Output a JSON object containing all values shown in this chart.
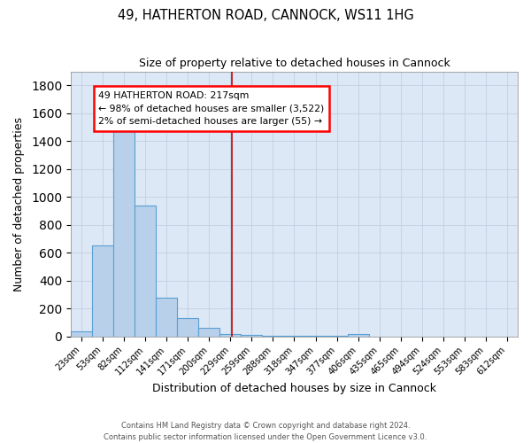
{
  "title": "49, HATHERTON ROAD, CANNOCK, WS11 1HG",
  "subtitle": "Size of property relative to detached houses in Cannock",
  "xlabel": "Distribution of detached houses by size in Cannock",
  "ylabel": "Number of detached properties",
  "footer_line1": "Contains HM Land Registry data © Crown copyright and database right 2024.",
  "footer_line2": "Contains public sector information licensed under the Open Government Licence v3.0.",
  "categories": [
    "23sqm",
    "53sqm",
    "82sqm",
    "112sqm",
    "141sqm",
    "171sqm",
    "200sqm",
    "229sqm",
    "259sqm",
    "288sqm",
    "318sqm",
    "347sqm",
    "377sqm",
    "406sqm",
    "435sqm",
    "465sqm",
    "494sqm",
    "524sqm",
    "553sqm",
    "583sqm",
    "612sqm"
  ],
  "values": [
    35,
    650,
    1470,
    940,
    280,
    130,
    60,
    20,
    8,
    4,
    4,
    4,
    4,
    15,
    0,
    0,
    0,
    0,
    0,
    0,
    0
  ],
  "bar_color": "#b8d0ea",
  "bar_edge_color": "#5a9fd4",
  "background_color": "#dce8f5",
  "annotation_lines": [
    "49 HATHERTON ROAD: 217sqm",
    "← 98% of detached houses are smaller (3,522)",
    "2% of semi-detached houses are larger (55) →"
  ],
  "ylim": [
    0,
    1900
  ],
  "yticks": [
    0,
    200,
    400,
    600,
    800,
    1000,
    1200,
    1400,
    1600,
    1800
  ],
  "fig_width": 6.0,
  "fig_height": 5.0,
  "dpi": 100,
  "bg_outer": "#ffffff"
}
